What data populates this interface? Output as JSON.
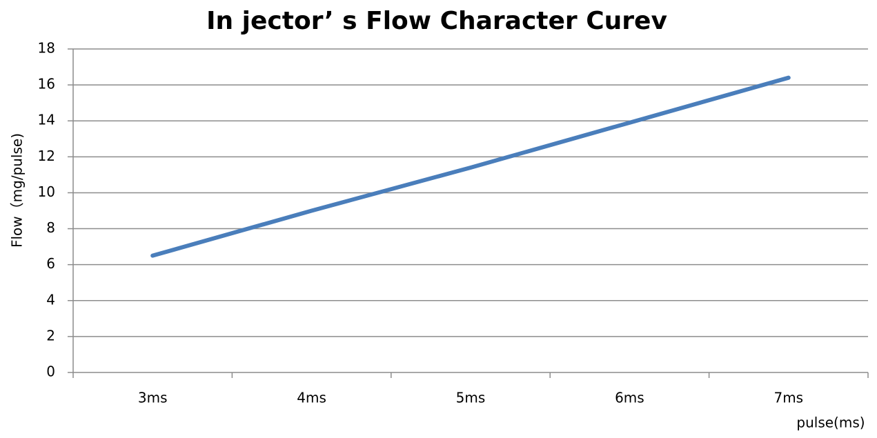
{
  "chart_data": {
    "type": "line",
    "title": "In jector’ s Flow   Character Curev",
    "x_label": "pulse(ms)",
    "y_label": "Flow（mg/pulse)",
    "categories": [
      "3ms",
      "4ms",
      "5ms",
      "6ms",
      "7ms"
    ],
    "series": [
      {
        "name": "Flow",
        "color": "#4a7ebb",
        "values": [
          6.5,
          9.0,
          11.4,
          13.9,
          16.4
        ]
      }
    ],
    "ylim": [
      0,
      18
    ],
    "yticks": [
      0,
      2,
      4,
      6,
      8,
      10,
      12,
      14,
      16,
      18
    ],
    "grid": true
  }
}
